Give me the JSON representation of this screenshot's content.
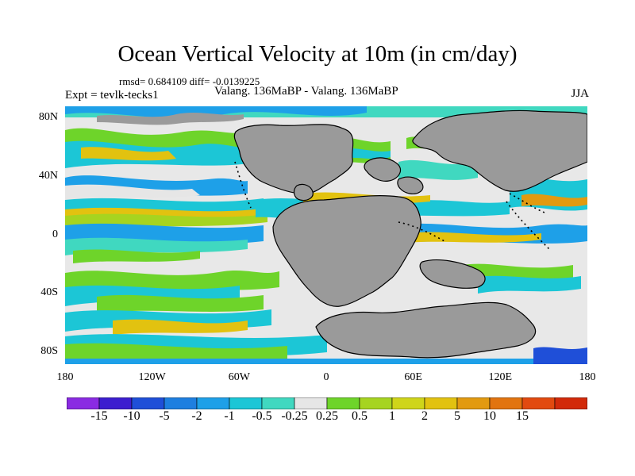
{
  "title": "Ocean Vertical Velocity at 10m (in cm/day)",
  "stats": "rmsd= 0.684109 diff= -0.0139225",
  "experiment": "Expt = tevlk-tecks1",
  "subtitle": "Valang. 136MaBP - Valang. 136MaBP",
  "season": "JJA",
  "colors": {
    "land": "#9a9a9a",
    "ocean_neutral": "#e8e8e8",
    "coast": "#000000"
  },
  "lat_ticks": [
    {
      "label": "80N",
      "lat": 80
    },
    {
      "label": "40N",
      "lat": 40
    },
    {
      "label": "0",
      "lat": 0
    },
    {
      "label": "40S",
      "lat": -40
    },
    {
      "label": "80S",
      "lat": -80
    }
  ],
  "lon_ticks": [
    {
      "label": "180",
      "lon": -180
    },
    {
      "label": "120W",
      "lon": -120
    },
    {
      "label": "60W",
      "lon": -60
    },
    {
      "label": "0",
      "lon": 0
    },
    {
      "label": "60E",
      "lon": 60
    },
    {
      "label": "120E",
      "lon": 120
    },
    {
      "label": "180",
      "lon": 180
    }
  ],
  "colorbar": {
    "colors": [
      "#8a2be2",
      "#3c1ecf",
      "#1f4fd8",
      "#1e7fe0",
      "#1ea0e8",
      "#1cc6d6",
      "#40d8c0",
      "#e6e6e6",
      "#6ed42a",
      "#a6d420",
      "#cfd51a",
      "#e2c210",
      "#e29a10",
      "#e27410",
      "#e24a10",
      "#d22a0a"
    ],
    "labels": [
      "-15",
      "-10",
      "-5",
      "-2",
      "-1",
      "-0.5",
      "-0.25",
      "0.25",
      "0.5",
      "1",
      "2",
      "5",
      "10",
      "15"
    ]
  }
}
